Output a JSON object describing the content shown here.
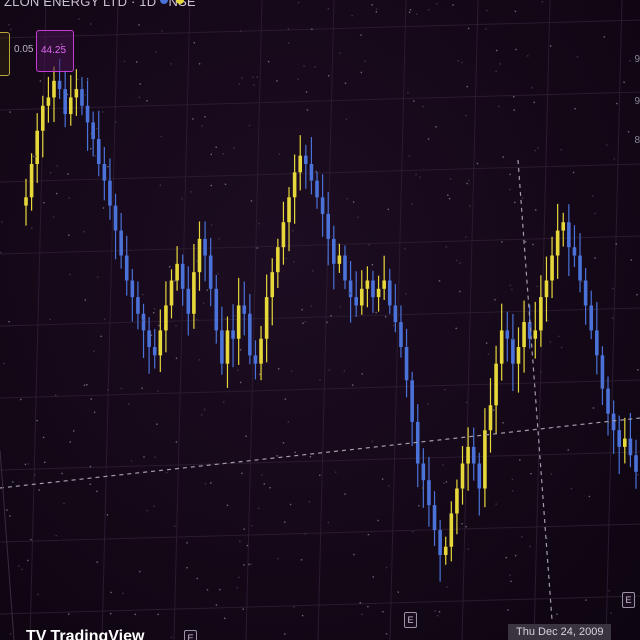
{
  "header": {
    "symbol_title": "ZLON ENERGY LTD · 1D · NSE"
  },
  "indicators": {
    "small_value": "0.05",
    "boxed_value": "44.25"
  },
  "y_axis": {
    "tick_labels": [
      "9",
      "9",
      "8"
    ]
  },
  "event_marker_text": "E",
  "footer": {
    "brand": "TradingView",
    "crosshair_date": "Thu Dec 24, 2009"
  },
  "colors": {
    "background": "#140817",
    "up_candle": "#e6d83a",
    "down_candle": "#4a72d8",
    "indicator_box": "#c43cd0",
    "grid": "#2a1b30",
    "crosshair": "#a49cab"
  },
  "chart_data": {
    "type": "candlestick",
    "title": "ZLON ENERGY LTD · 1D · NSE",
    "crosshair_x_label": "Thu Dec 24, 2009",
    "series": [
      {
        "name": "price",
        "values": [
          62,
          70,
          78,
          84,
          86,
          90,
          88,
          82,
          86,
          88,
          84,
          80,
          76,
          70,
          66,
          60,
          54,
          48,
          42,
          38,
          34,
          30,
          26,
          24,
          30,
          36,
          42,
          46,
          40,
          34,
          44,
          52,
          48,
          40,
          30,
          22,
          30,
          28,
          36,
          34,
          24,
          22,
          28,
          38,
          44,
          50,
          56,
          62,
          68,
          72,
          70,
          66,
          62,
          58,
          52,
          46,
          48,
          42,
          38,
          36,
          40,
          42,
          38,
          40,
          42,
          36,
          32,
          26,
          18,
          8,
          -2,
          -6,
          -12,
          -18,
          -24,
          -22,
          -14,
          -8,
          -2,
          2,
          -2,
          -8,
          6,
          12,
          22,
          30,
          28,
          22,
          26,
          32,
          28,
          30,
          38,
          42,
          48,
          54,
          56,
          50,
          48,
          42,
          36,
          30,
          24,
          16,
          10,
          6,
          2,
          4,
          0,
          -4
        ]
      }
    ],
    "grid": true,
    "legend": "none"
  }
}
